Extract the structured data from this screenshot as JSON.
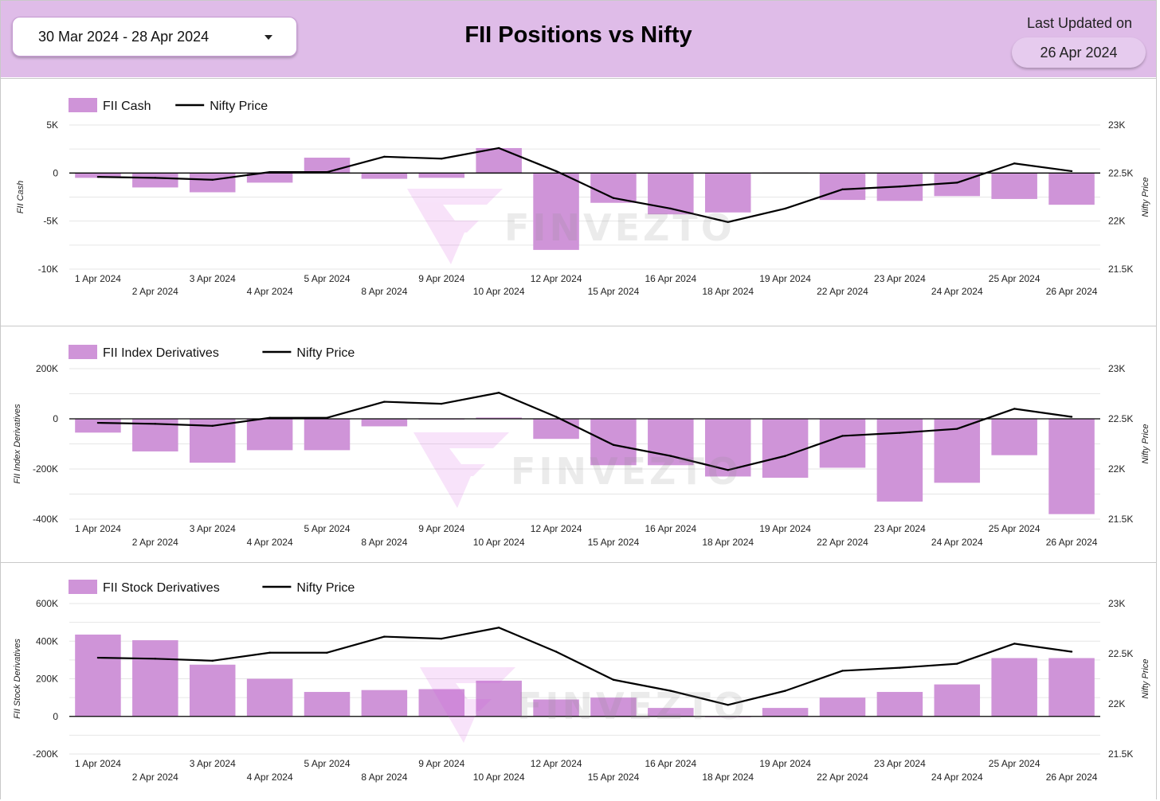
{
  "header": {
    "date_range": "30 Mar 2024 - 28 Apr 2024",
    "title": "FII Positions vs Nifty",
    "last_updated_label": "Last Updated on",
    "last_updated_value": "26 Apr 2024"
  },
  "watermark": "FINVEZTO",
  "colors": {
    "bar": "#cf94d8",
    "line": "#000000",
    "header_bg": "#dfbce8",
    "grid": "#e6e6e6"
  },
  "chart_data": [
    {
      "type": "bar",
      "categories": [
        "1 Apr 2024",
        "2 Apr 2024",
        "3 Apr 2024",
        "4 Apr 2024",
        "5 Apr 2024",
        "8 Apr 2024",
        "9 Apr 2024",
        "10 Apr 2024",
        "12 Apr 2024",
        "15 Apr 2024",
        "16 Apr 2024",
        "18 Apr 2024",
        "19 Apr 2024",
        "22 Apr 2024",
        "23 Apr 2024",
        "24 Apr 2024",
        "25 Apr 2024",
        "26 Apr 2024"
      ],
      "series": [
        {
          "name": "FII Cash",
          "kind": "bar",
          "axis": "left",
          "values": [
            -500,
            -1500,
            -2000,
            -1000,
            1600,
            -600,
            -500,
            2600,
            -8000,
            -3100,
            -4300,
            -4100,
            50,
            -2800,
            -2900,
            -2400,
            -2700,
            -3300
          ]
        },
        {
          "name": "Nifty Price",
          "kind": "line",
          "axis": "right",
          "values": [
            22460,
            22450,
            22430,
            22510,
            22510,
            22670,
            22650,
            22760,
            22520,
            22240,
            22130,
            21990,
            22130,
            22330,
            22360,
            22400,
            22600,
            22520
          ]
        }
      ],
      "ylabel": "FII Cash",
      "y2label": "Nifty Price",
      "ylim": [
        -10000,
        5000
      ],
      "y2lim": [
        21500,
        23000
      ],
      "yticks": [
        {
          "v": 5000,
          "label": "5K"
        },
        {
          "v": 0,
          "label": "0"
        },
        {
          "v": -5000,
          "label": "-5K"
        },
        {
          "v": -10000,
          "label": "-10K"
        }
      ],
      "y2ticks": [
        {
          "v": 23000,
          "label": "23K"
        },
        {
          "v": 22500,
          "label": "22.5K"
        },
        {
          "v": 22000,
          "label": "22K"
        },
        {
          "v": 21500,
          "label": "21.5K"
        }
      ],
      "legend": "top-left"
    },
    {
      "type": "bar",
      "categories": [
        "1 Apr 2024",
        "2 Apr 2024",
        "3 Apr 2024",
        "4 Apr 2024",
        "5 Apr 2024",
        "8 Apr 2024",
        "9 Apr 2024",
        "10 Apr 2024",
        "12 Apr 2024",
        "15 Apr 2024",
        "16 Apr 2024",
        "18 Apr 2024",
        "19 Apr 2024",
        "22 Apr 2024",
        "23 Apr 2024",
        "24 Apr 2024",
        "25 Apr 2024",
        "26 Apr 2024"
      ],
      "series": [
        {
          "name": "FII Index Derivatives",
          "kind": "bar",
          "axis": "left",
          "values": [
            -55000,
            -130000,
            -175000,
            -125000,
            -125000,
            -30000,
            -1000,
            5000,
            -80000,
            -185000,
            -185000,
            -230000,
            -235000,
            -195000,
            -330000,
            -255000,
            -145000,
            -380000
          ]
        },
        {
          "name": "Nifty Price",
          "kind": "line",
          "axis": "right",
          "values": [
            22460,
            22450,
            22430,
            22510,
            22510,
            22670,
            22650,
            22760,
            22520,
            22240,
            22130,
            21990,
            22130,
            22330,
            22360,
            22400,
            22600,
            22520
          ]
        }
      ],
      "ylabel": "FII Index Derivatives",
      "y2label": "Nifty Price",
      "ylim": [
        -400000,
        200000
      ],
      "y2lim": [
        21500,
        23000
      ],
      "yticks": [
        {
          "v": 200000,
          "label": "200K"
        },
        {
          "v": 0,
          "label": "0"
        },
        {
          "v": -200000,
          "label": "-200K"
        },
        {
          "v": -400000,
          "label": "-400K"
        }
      ],
      "y2ticks": [
        {
          "v": 23000,
          "label": "23K"
        },
        {
          "v": 22500,
          "label": "22.5K"
        },
        {
          "v": 22000,
          "label": "22K"
        },
        {
          "v": 21500,
          "label": "21.5K"
        }
      ],
      "legend": "top-left"
    },
    {
      "type": "bar",
      "categories": [
        "1 Apr 2024",
        "2 Apr 2024",
        "3 Apr 2024",
        "4 Apr 2024",
        "5 Apr 2024",
        "8 Apr 2024",
        "9 Apr 2024",
        "10 Apr 2024",
        "12 Apr 2024",
        "15 Apr 2024",
        "16 Apr 2024",
        "18 Apr 2024",
        "19 Apr 2024",
        "22 Apr 2024",
        "23 Apr 2024",
        "24 Apr 2024",
        "25 Apr 2024",
        "26 Apr 2024"
      ],
      "series": [
        {
          "name": "FII Stock Derivatives",
          "kind": "bar",
          "axis": "left",
          "values": [
            435000,
            405000,
            275000,
            200000,
            130000,
            140000,
            145000,
            190000,
            90000,
            100000,
            45000,
            -3000,
            45000,
            100000,
            130000,
            170000,
            310000,
            310000
          ]
        },
        {
          "name": "Nifty Price",
          "kind": "line",
          "axis": "right",
          "values": [
            22460,
            22450,
            22430,
            22510,
            22510,
            22670,
            22650,
            22760,
            22520,
            22240,
            22130,
            21990,
            22130,
            22330,
            22360,
            22400,
            22600,
            22520
          ]
        }
      ],
      "ylabel": "FII Stock Derivatives",
      "y2label": "Nifty Price",
      "ylim": [
        -200000,
        600000
      ],
      "y2lim": [
        21500,
        23000
      ],
      "yticks": [
        {
          "v": 600000,
          "label": "600K"
        },
        {
          "v": 400000,
          "label": "400K"
        },
        {
          "v": 200000,
          "label": "200K"
        },
        {
          "v": 0,
          "label": "0"
        },
        {
          "v": -200000,
          "label": "-200K"
        }
      ],
      "y2ticks": [
        {
          "v": 23000,
          "label": "23K"
        },
        {
          "v": 22500,
          "label": "22.5K"
        },
        {
          "v": 22000,
          "label": "22K"
        },
        {
          "v": 21500,
          "label": "21.5K"
        }
      ],
      "legend": "top-left"
    }
  ]
}
